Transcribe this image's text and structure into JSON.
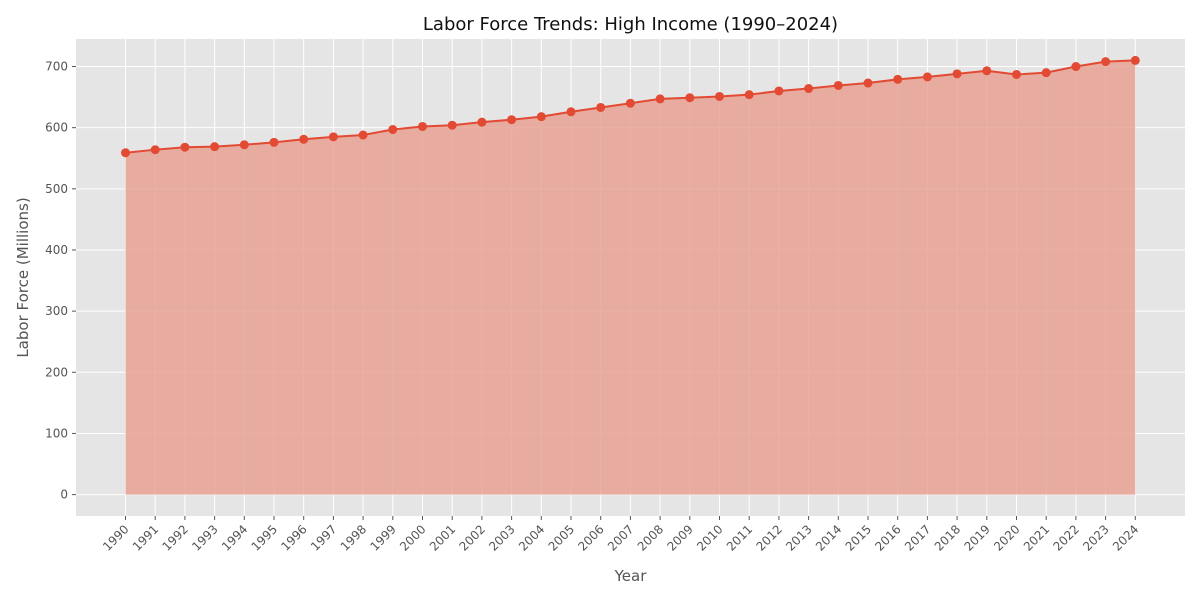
{
  "chart_data": {
    "type": "area",
    "title": "Labor Force Trends: High Income (1990–2024)",
    "xlabel": "Year",
    "ylabel": "Labor Force (Millions)",
    "x": [
      "1990",
      "1991",
      "1992",
      "1993",
      "1994",
      "1995",
      "1996",
      "1997",
      "1998",
      "1999",
      "2000",
      "2001",
      "2002",
      "2003",
      "2004",
      "2005",
      "2006",
      "2007",
      "2008",
      "2009",
      "2010",
      "2011",
      "2012",
      "2013",
      "2014",
      "2015",
      "2016",
      "2017",
      "2018",
      "2019",
      "2020",
      "2021",
      "2022",
      "2023",
      "2024"
    ],
    "series": [
      {
        "values": [
          559,
          564,
          568,
          569,
          572,
          576,
          581,
          585,
          588,
          597,
          602,
          604,
          609,
          613,
          618,
          626,
          633,
          640,
          647,
          649,
          651,
          654,
          660,
          664,
          669,
          673,
          679,
          683,
          688,
          693,
          687,
          690,
          700,
          708,
          710
        ],
        "color": "#e24a33"
      }
    ],
    "ylim": [
      -35,
      745
    ],
    "yticks": [
      0,
      100,
      200,
      300,
      400,
      500,
      600,
      700
    ],
    "grid": true,
    "background": "#e5e5e5",
    "fill_color": "#e8a293"
  }
}
